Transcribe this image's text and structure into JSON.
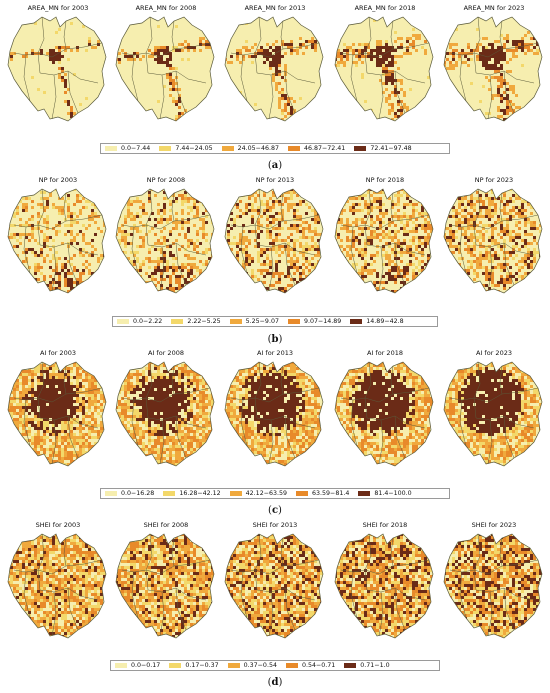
{
  "colors": {
    "c1": "#f6eeaf",
    "c2": "#f3d86a",
    "c3": "#f0a93d",
    "c4": "#e88a2a",
    "c5": "#6b2b17",
    "boundary": "#5a5a3a"
  },
  "panels": [
    {
      "label": "(a)",
      "label_letter": "a",
      "titles": [
        "AREA_MN for 2003",
        "AREA_MN for 2008",
        "AREA_MN for 2013",
        "AREA_MN for 2018",
        "AREA_MN for 2023"
      ],
      "legend": [
        "0.0−7.44",
        "7.44−24.05",
        "24.05−46.87",
        "46.87−72.41",
        "72.41−97.48"
      ],
      "pattern": "area_mn"
    },
    {
      "label": "(b)",
      "label_letter": "b",
      "titles": [
        "NP for 2003",
        "NP for 2008",
        "NP for 2013",
        "NP for 2018",
        "NP for 2023"
      ],
      "legend": [
        "0.0−2.22",
        "2.22−5.25",
        "5.25−9.07",
        "9.07−14.89",
        "14.89−42.8"
      ],
      "pattern": "np"
    },
    {
      "label": "(c)",
      "label_letter": "c",
      "titles": [
        "AI for 2003",
        "AI for 2008",
        "AI for 2013",
        "AI for 2018",
        "AI for 2023"
      ],
      "legend": [
        "0.0−16.28",
        "16.28−42.12",
        "42.12−63.59",
        "63.59−81.4",
        "81.4−100.0"
      ],
      "pattern": "ai"
    },
    {
      "label": "(d)",
      "label_letter": "d",
      "titles": [
        "SHEI for 2003",
        "SHEI for 2008",
        "SHEI for 2013",
        "SHEI for 2018",
        "SHEI for 2023"
      ],
      "legend": [
        "0.0−0.17",
        "0.17−0.37",
        "0.37−0.54",
        "0.54−0.71",
        "0.71−1.0"
      ],
      "pattern": "shei"
    }
  ]
}
